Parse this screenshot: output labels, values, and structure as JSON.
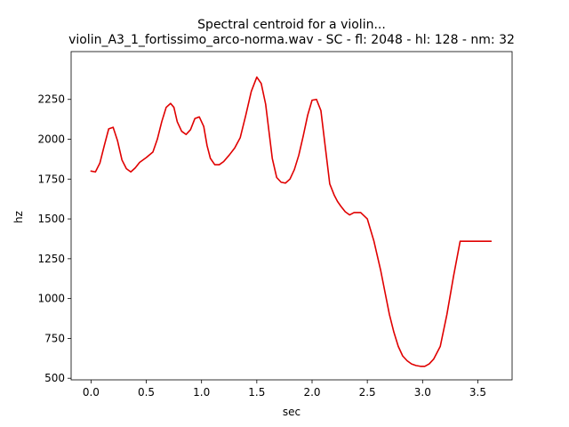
{
  "chart_data": {
    "type": "line",
    "title_line1": "Spectral centroid for a violin...",
    "title_line2": "violin_A3_1_fortissimo_arco-norma.wav - SC - fl: 2048 - hl: 128 - nm: 32",
    "xlabel": "sec",
    "ylabel": "hz",
    "xlim": [
      -0.18,
      3.81
    ],
    "ylim": [
      490,
      2550
    ],
    "xticks": [
      0.0,
      0.5,
      1.0,
      1.5,
      2.0,
      2.5,
      3.0,
      3.5
    ],
    "xtick_labels": [
      "0.0",
      "0.5",
      "1.0",
      "1.5",
      "2.0",
      "2.5",
      "3.0",
      "3.5"
    ],
    "yticks": [
      500,
      750,
      1000,
      1250,
      1500,
      1750,
      2000,
      2250
    ],
    "ytick_labels": [
      "500",
      "750",
      "1000",
      "1250",
      "1500",
      "1750",
      "2000",
      "2250"
    ],
    "grid": false,
    "line_color": "#e00000",
    "series": [
      {
        "x": [
          0.0,
          0.04,
          0.08,
          0.12,
          0.16,
          0.2,
          0.24,
          0.28,
          0.32,
          0.36,
          0.4,
          0.44,
          0.5,
          0.56,
          0.6,
          0.64,
          0.68,
          0.72,
          0.75,
          0.78,
          0.82,
          0.86,
          0.9,
          0.94,
          0.98,
          1.02,
          1.05,
          1.08,
          1.12,
          1.16,
          1.2,
          1.25,
          1.3,
          1.35,
          1.4,
          1.45,
          1.5,
          1.54,
          1.58,
          1.61,
          1.64,
          1.68,
          1.72,
          1.76,
          1.8,
          1.84,
          1.88,
          1.92,
          1.96,
          2.0,
          2.04,
          2.08,
          2.12,
          2.16,
          2.2,
          2.23,
          2.26,
          2.3,
          2.34,
          2.38,
          2.44,
          2.5,
          2.56,
          2.62,
          2.66,
          2.7,
          2.74,
          2.78,
          2.82,
          2.86,
          2.9,
          2.94,
          2.98,
          3.02,
          3.06,
          3.1,
          3.16,
          3.22,
          3.28,
          3.34,
          3.38,
          3.42,
          3.46,
          3.5,
          3.54,
          3.58,
          3.62
        ],
        "y": [
          1800,
          1795,
          1850,
          1960,
          2065,
          2075,
          1990,
          1870,
          1815,
          1795,
          1820,
          1855,
          1885,
          1920,
          2000,
          2110,
          2200,
          2225,
          2200,
          2110,
          2050,
          2030,
          2060,
          2130,
          2140,
          2080,
          1960,
          1880,
          1840,
          1840,
          1860,
          1900,
          1945,
          2010,
          2150,
          2300,
          2390,
          2350,
          2220,
          2050,
          1880,
          1760,
          1730,
          1725,
          1750,
          1810,
          1900,
          2020,
          2150,
          2245,
          2250,
          2180,
          1950,
          1720,
          1650,
          1610,
          1580,
          1545,
          1525,
          1540,
          1540,
          1500,
          1360,
          1180,
          1040,
          900,
          790,
          700,
          640,
          610,
          590,
          580,
          575,
          575,
          590,
          620,
          700,
          900,
          1140,
          1360,
          1360,
          1360,
          1360,
          1360,
          1360,
          1360,
          1360
        ]
      }
    ]
  }
}
